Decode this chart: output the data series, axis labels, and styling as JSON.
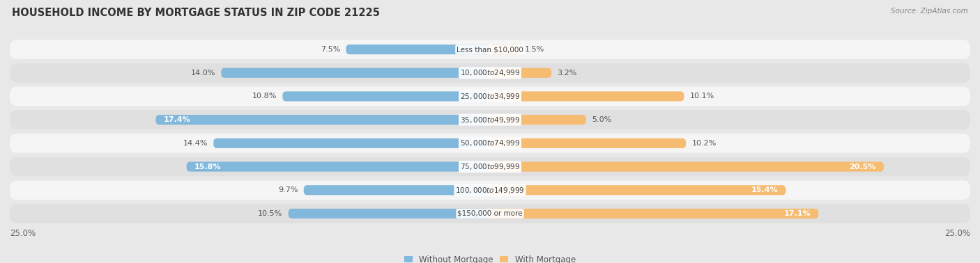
{
  "title": "HOUSEHOLD INCOME BY MORTGAGE STATUS IN ZIP CODE 21225",
  "source": "Source: ZipAtlas.com",
  "categories": [
    "Less than $10,000",
    "$10,000 to $24,999",
    "$25,000 to $34,999",
    "$35,000 to $49,999",
    "$50,000 to $74,999",
    "$75,000 to $99,999",
    "$100,000 to $149,999",
    "$150,000 or more"
  ],
  "without_mortgage": [
    7.5,
    14.0,
    10.8,
    17.4,
    14.4,
    15.8,
    9.7,
    10.5
  ],
  "with_mortgage": [
    1.5,
    3.2,
    10.1,
    5.0,
    10.2,
    20.5,
    15.4,
    17.1
  ],
  "without_color": "#82b8dc",
  "with_color": "#f5bc72",
  "axis_max": 25.0,
  "bg_color": "#e8e8e8",
  "row_bg_even": "#f5f5f5",
  "row_bg_odd": "#e0e0e0",
  "label_fontsize": 8.0,
  "title_fontsize": 10.5,
  "source_fontsize": 7.5,
  "legend_fontsize": 8.5,
  "cat_label_fontsize": 7.5
}
